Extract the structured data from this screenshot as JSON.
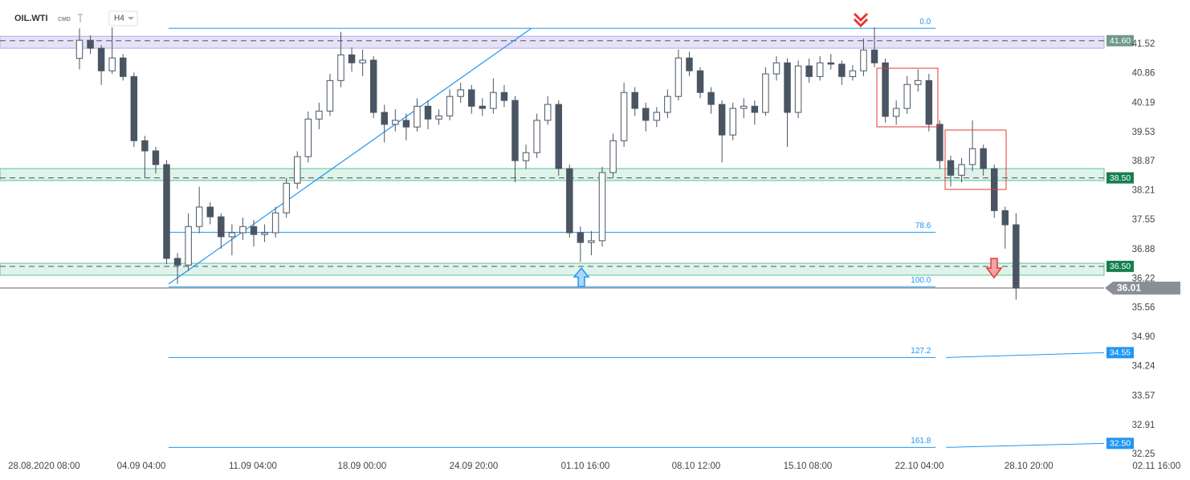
{
  "chart_data": {
    "type": "candlestick",
    "symbol": "OIL.WTI",
    "market": "CMD",
    "timeframe": "H4",
    "up_color": "#ffffff",
    "down_color": "#4a5563",
    "wick_color": "#4a5563",
    "xlim": [
      -16.2,
      420.9
    ],
    "ylim": [
      32.18,
      42.52
    ],
    "xticks": [
      {
        "value": 0,
        "label": "28.08.2020 08:00"
      },
      {
        "value": 35.7,
        "label": "04.09 04:00"
      },
      {
        "value": 76.7,
        "label": "11.09 04:00"
      },
      {
        "value": 116.8,
        "label": "18.09 00:00"
      },
      {
        "value": 157.8,
        "label": "24.09 20:00"
      },
      {
        "value": 198.8,
        "label": "01.10 16:00"
      },
      {
        "value": 239.5,
        "label": "08.10 12:00"
      },
      {
        "value": 280.5,
        "label": "15.10 08:00"
      },
      {
        "value": 321.5,
        "label": "22.10 04:00"
      },
      {
        "value": 361.7,
        "label": "28.10 20:00"
      },
      {
        "value": 408.6,
        "label": "02.11 16:00"
      }
    ],
    "yticks": [
      41.52,
      40.86,
      40.19,
      39.53,
      38.87,
      38.21,
      37.55,
      36.88,
      36.22,
      35.56,
      {
        "value": 34.9,
        "label": "34.90"
      },
      34.24,
      33.57,
      32.91,
      32.25
    ],
    "candles": [
      [
        13,
        41.2,
        41.88,
        40.95,
        41.61
      ],
      [
        17,
        41.61,
        41.72,
        41.3,
        41.43
      ],
      [
        21,
        41.43,
        41.5,
        40.6,
        40.92
      ],
      [
        25,
        40.92,
        41.9,
        40.85,
        41.21
      ],
      [
        29,
        41.21,
        41.3,
        40.7,
        40.79
      ],
      [
        33,
        40.79,
        40.88,
        39.2,
        39.34
      ],
      [
        37,
        39.34,
        39.45,
        38.5,
        39.11
      ],
      [
        41,
        39.11,
        39.2,
        38.6,
        38.8
      ],
      [
        45,
        38.8,
        38.9,
        36.55,
        36.68
      ],
      [
        49,
        36.68,
        36.8,
        36.1,
        36.53
      ],
      [
        53,
        36.53,
        37.7,
        36.4,
        37.4
      ],
      [
        57,
        37.4,
        38.3,
        37.25,
        37.84
      ],
      [
        61,
        37.84,
        37.95,
        37.45,
        37.62
      ],
      [
        65,
        37.62,
        37.7,
        36.9,
        37.17
      ],
      [
        69,
        37.17,
        37.45,
        36.75,
        37.26
      ],
      [
        73,
        37.26,
        37.6,
        37.1,
        37.4
      ],
      [
        77,
        37.4,
        37.55,
        36.95,
        37.22
      ],
      [
        81,
        37.22,
        37.45,
        37.05,
        37.26
      ],
      [
        85,
        37.26,
        37.85,
        37.15,
        37.71
      ],
      [
        89,
        37.71,
        38.5,
        37.6,
        38.38
      ],
      [
        93,
        38.38,
        39.1,
        38.25,
        38.98
      ],
      [
        97,
        38.98,
        40.0,
        38.85,
        39.83
      ],
      [
        101,
        39.83,
        40.2,
        39.6,
        40.01
      ],
      [
        105,
        40.01,
        40.85,
        39.9,
        40.7
      ],
      [
        109,
        40.7,
        41.8,
        40.55,
        41.28
      ],
      [
        113,
        41.28,
        41.45,
        40.9,
        41.1
      ],
      [
        117,
        41.1,
        41.4,
        40.8,
        41.16
      ],
      [
        121,
        41.16,
        41.25,
        39.85,
        39.98
      ],
      [
        125,
        39.98,
        40.15,
        39.3,
        39.71
      ],
      [
        129,
        39.71,
        40.05,
        39.55,
        39.8
      ],
      [
        133,
        39.8,
        39.95,
        39.35,
        39.65
      ],
      [
        137,
        39.65,
        40.3,
        39.55,
        40.12
      ],
      [
        141,
        40.12,
        40.25,
        39.6,
        39.83
      ],
      [
        145,
        39.83,
        40.05,
        39.7,
        39.9
      ],
      [
        149,
        39.9,
        40.5,
        39.8,
        40.34
      ],
      [
        153,
        40.34,
        40.65,
        40.2,
        40.49
      ],
      [
        157,
        40.49,
        40.6,
        39.95,
        40.12
      ],
      [
        161,
        40.12,
        40.3,
        39.9,
        40.07
      ],
      [
        165,
        40.07,
        40.75,
        39.95,
        40.43
      ],
      [
        169,
        40.43,
        40.6,
        40.1,
        40.25
      ],
      [
        173,
        40.25,
        40.35,
        38.4,
        38.89
      ],
      [
        177,
        38.89,
        39.25,
        38.7,
        39.07
      ],
      [
        181,
        39.07,
        39.95,
        38.95,
        39.8
      ],
      [
        185,
        39.8,
        40.35,
        39.7,
        40.16
      ],
      [
        189,
        40.16,
        40.25,
        38.55,
        38.71
      ],
      [
        193,
        38.71,
        38.8,
        37.15,
        37.26
      ],
      [
        197,
        37.26,
        37.4,
        36.6,
        37.04
      ],
      [
        201,
        37.04,
        37.3,
        36.75,
        37.08
      ],
      [
        205,
        37.08,
        38.75,
        36.95,
        38.62
      ],
      [
        209,
        38.62,
        39.5,
        38.5,
        39.34
      ],
      [
        213,
        39.34,
        40.65,
        39.2,
        40.43
      ],
      [
        217,
        40.43,
        40.55,
        39.9,
        40.07
      ],
      [
        221,
        40.07,
        40.2,
        39.55,
        39.8
      ],
      [
        225,
        39.8,
        40.1,
        39.65,
        39.98
      ],
      [
        229,
        39.98,
        40.5,
        39.85,
        40.34
      ],
      [
        233,
        40.34,
        41.4,
        40.25,
        41.21
      ],
      [
        237,
        41.21,
        41.35,
        40.8,
        40.92
      ],
      [
        241,
        40.92,
        41.0,
        40.3,
        40.43
      ],
      [
        245,
        40.43,
        40.55,
        39.95,
        40.16
      ],
      [
        249,
        40.16,
        40.25,
        38.85,
        39.47
      ],
      [
        253,
        39.47,
        40.2,
        39.35,
        40.07
      ],
      [
        257,
        40.07,
        40.3,
        39.85,
        40.12
      ],
      [
        261,
        40.12,
        40.25,
        39.7,
        39.98
      ],
      [
        265,
        39.98,
        41.0,
        39.9,
        40.85
      ],
      [
        269,
        40.85,
        41.25,
        40.7,
        41.1
      ],
      [
        273,
        41.1,
        41.2,
        39.2,
        39.98
      ],
      [
        277,
        39.98,
        41.15,
        39.85,
        41.03
      ],
      [
        281,
        41.03,
        41.2,
        40.65,
        40.79
      ],
      [
        285,
        40.79,
        41.25,
        40.7,
        41.1
      ],
      [
        289,
        41.1,
        41.3,
        40.95,
        41.07
      ],
      [
        293,
        41.07,
        41.15,
        40.6,
        40.79
      ],
      [
        297,
        40.79,
        41.05,
        40.7,
        40.92
      ],
      [
        301,
        40.92,
        41.65,
        40.8,
        41.39
      ],
      [
        305,
        41.39,
        41.9,
        41.0,
        41.1
      ],
      [
        309,
        41.1,
        41.2,
        39.75,
        39.89
      ],
      [
        313,
        39.89,
        40.25,
        39.7,
        40.07
      ],
      [
        317,
        40.07,
        40.8,
        39.95,
        40.61
      ],
      [
        321,
        40.61,
        40.95,
        40.45,
        40.7
      ],
      [
        325,
        40.7,
        40.85,
        39.55,
        39.71
      ],
      [
        329,
        39.71,
        39.8,
        38.7,
        38.89
      ],
      [
        333,
        38.89,
        39.0,
        38.3,
        38.56
      ],
      [
        337,
        38.56,
        38.95,
        38.4,
        38.8
      ],
      [
        341,
        38.8,
        39.8,
        38.65,
        39.16
      ],
      [
        345,
        39.16,
        39.25,
        38.55,
        38.71
      ],
      [
        349,
        38.71,
        38.8,
        37.6,
        37.76
      ],
      [
        353,
        37.76,
        37.85,
        36.9,
        37.44
      ],
      [
        357,
        37.44,
        37.7,
        35.75,
        36.01
      ]
    ],
    "zones": [
      {
        "from": 41.43,
        "to": 41.7,
        "level": 41.6,
        "label": "41.60",
        "fill": "#e6e1f7",
        "border": "#b9a9e6",
        "tag_color": "#6f9a8b"
      },
      {
        "from": 38.44,
        "to": 38.71,
        "level": 38.5,
        "label": "38.50",
        "fill": "#dff3ea",
        "border": "#5cc097",
        "tag_color": "#15804f"
      },
      {
        "from": 36.3,
        "to": 36.57,
        "level": 36.5,
        "label": "36.50",
        "fill": "#dff3ea",
        "border": "#5cc097",
        "tag_color": "#15804f"
      }
    ],
    "fib_x": [
      45.7,
      327.5
    ],
    "fib_color": "#2196f3",
    "fib_levels": [
      {
        "ratio": "0.0",
        "value": 41.88
      },
      {
        "ratio": "78.6",
        "value": 37.27
      },
      {
        "ratio": "100.0",
        "value": 36.04
      },
      {
        "ratio": "127.2",
        "value": 34.44,
        "target": 34.55,
        "target_label": "34.55"
      },
      {
        "ratio": "161.8",
        "value": 32.41,
        "target": 32.5,
        "target_label": "32.50"
      }
    ],
    "trendline": {
      "x": [
        45.7,
        179
      ],
      "y": [
        36.1,
        41.88
      ],
      "color": "#2196f3"
    },
    "last_price": 36.01
  }
}
